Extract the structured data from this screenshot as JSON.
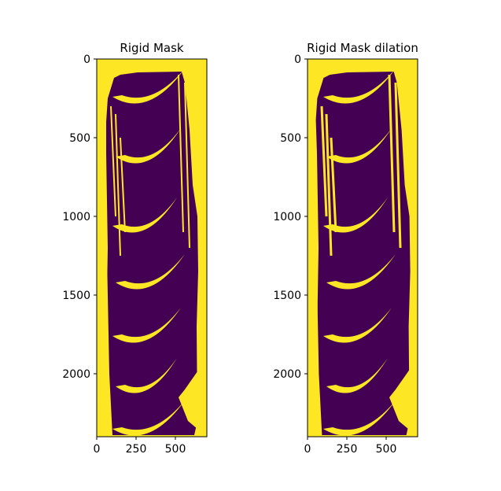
{
  "chart_data": [
    {
      "type": "heatmap",
      "title": "Rigid Mask",
      "xlabel": "",
      "ylabel": "",
      "xlim": [
        0,
        700
      ],
      "ylim": [
        2400,
        0
      ],
      "x_ticks": [
        0,
        250,
        500
      ],
      "y_ticks": [
        0,
        500,
        1000,
        1500,
        2000
      ],
      "colormap": "viridis",
      "colors": {
        "zero": "#440154",
        "one": "#fde725"
      },
      "blade_rows_y": [
        240,
        620,
        1060,
        1420,
        1760,
        2080,
        2350
      ],
      "grid": false
    },
    {
      "type": "heatmap",
      "title": "Rigid Mask dilation",
      "xlabel": "",
      "ylabel": "",
      "xlim": [
        0,
        700
      ],
      "ylim": [
        2400,
        0
      ],
      "x_ticks": [
        0,
        250,
        500
      ],
      "y_ticks": [
        0,
        500,
        1000,
        1500,
        2000
      ],
      "colormap": "viridis",
      "colors": {
        "zero": "#440154",
        "one": "#fde725"
      },
      "blade_rows_y": [
        240,
        620,
        1060,
        1420,
        1760,
        2080,
        2350
      ],
      "grid": false
    }
  ]
}
